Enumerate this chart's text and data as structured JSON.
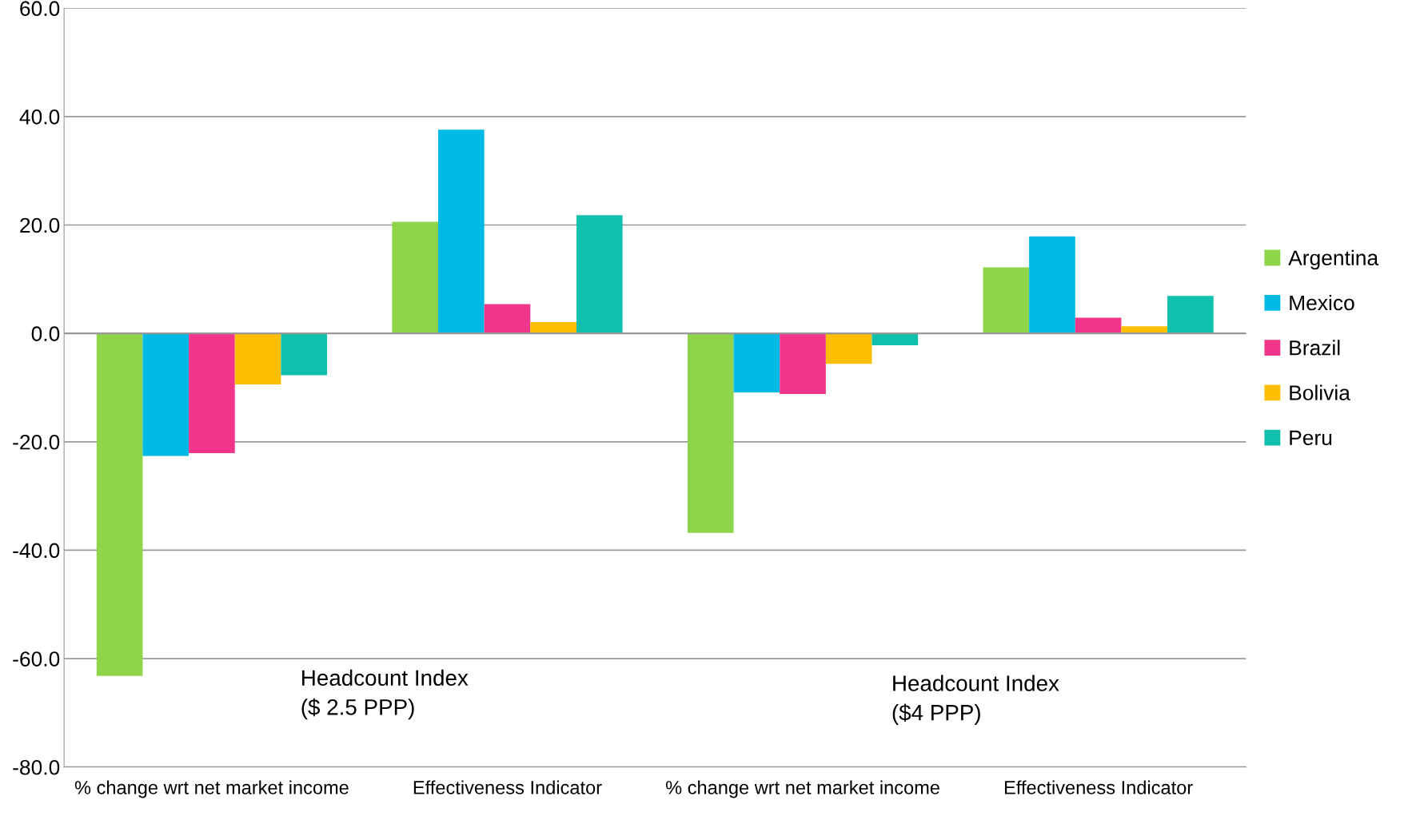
{
  "chart_data": {
    "type": "bar",
    "categories": [
      "% change wrt net market income",
      "Effectiveness Indicator",
      "% change wrt net market income",
      "Effectiveness Indicator"
    ],
    "series": [
      {
        "name": "Argentina",
        "color": "#8fd54a",
        "values": [
          -63.2,
          20.6,
          -36.8,
          12.2
        ]
      },
      {
        "name": "Mexico",
        "color": "#00b9e4",
        "values": [
          -22.6,
          37.6,
          -10.9,
          17.9
        ]
      },
      {
        "name": "Brazil",
        "color": "#f0368a",
        "values": [
          -22.1,
          5.4,
          -11.2,
          2.9
        ]
      },
      {
        "name": "Bolivia",
        "color": "#fdbf00",
        "values": [
          -9.4,
          2.1,
          -5.6,
          1.3
        ]
      },
      {
        "name": "Peru",
        "color": "#10bfac",
        "values": [
          -7.7,
          21.8,
          -2.2,
          6.9
        ]
      }
    ],
    "ylim": [
      -80,
      60
    ],
    "yticks": [
      {
        "value": -80,
        "label": "-80.0"
      },
      {
        "value": -60,
        "label": "-60.0"
      },
      {
        "value": -40,
        "label": "-40.0"
      },
      {
        "value": -20,
        "label": "-20.0"
      },
      {
        "value": 0,
        "label": "0.0"
      },
      {
        "value": 20,
        "label": "20.0"
      },
      {
        "value": 40,
        "label": "40.0"
      },
      {
        "value": 60,
        "label": "60.0"
      }
    ],
    "grid": "y",
    "legend": "right",
    "annotations": [
      "Headcount Index\n($ 2.5 PPP)",
      "Headcount Index\n($4 PPP)"
    ]
  }
}
